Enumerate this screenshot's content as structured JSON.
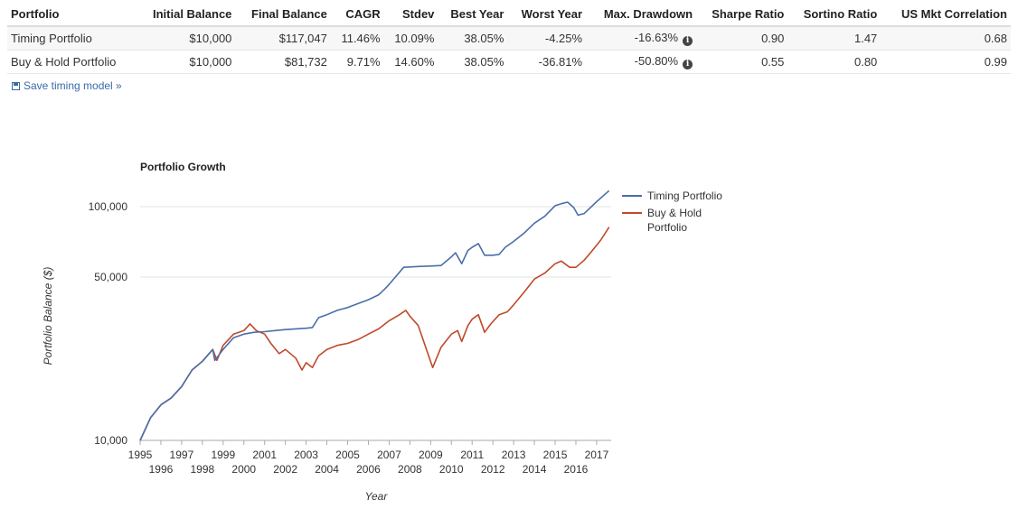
{
  "table": {
    "headers": [
      "Portfolio",
      "Initial Balance",
      "Final Balance",
      "CAGR",
      "Stdev",
      "Best Year",
      "Worst Year",
      "Max. Drawdown",
      "Sharpe Ratio",
      "Sortino Ratio",
      "US Mkt Correlation"
    ],
    "rows": [
      {
        "portfolio": "Timing Portfolio",
        "initial": "$10,000",
        "final": "$117,047",
        "cagr": "11.46%",
        "stdev": "10.09%",
        "best": "38.05%",
        "worst": "-4.25%",
        "drawdown": "-16.63%",
        "sharpe": "0.90",
        "sortino": "1.47",
        "corr": "0.68"
      },
      {
        "portfolio": "Buy & Hold Portfolio",
        "initial": "$10,000",
        "final": "$81,732",
        "cagr": "9.71%",
        "stdev": "14.60%",
        "best": "38.05%",
        "worst": "-36.81%",
        "drawdown": "-50.80%",
        "sharpe": "0.55",
        "sortino": "0.80",
        "corr": "0.99"
      }
    ],
    "info_icon": "i"
  },
  "save_link": "Save timing model »",
  "chart_data": {
    "type": "line",
    "title": "Portfolio Growth",
    "xlabel": "Year",
    "ylabel": "Portfolio Balance ($)",
    "y_scale": "log",
    "ylim": [
      10000,
      125000
    ],
    "xlim": [
      1995,
      2017.7
    ],
    "y_ticks": [
      {
        "v": 10000,
        "label": "10,000"
      },
      {
        "v": 50000,
        "label": "50,000"
      },
      {
        "v": 100000,
        "label": "100,000"
      }
    ],
    "x_ticks": [
      "1995",
      "1996",
      "1997",
      "1998",
      "1999",
      "2000",
      "2001",
      "2002",
      "2003",
      "2004",
      "2005",
      "2006",
      "2007",
      "2008",
      "2009",
      "2010",
      "2011",
      "2012",
      "2013",
      "2014",
      "2015",
      "2016",
      "2017"
    ],
    "legend_position": "right",
    "series": [
      {
        "name": "Timing Portfolio",
        "color": "#4a6ea8",
        "points": [
          [
            1995.0,
            10000
          ],
          [
            1995.5,
            12500
          ],
          [
            1996.0,
            14200
          ],
          [
            1996.5,
            15200
          ],
          [
            1997.0,
            17000
          ],
          [
            1997.5,
            20000
          ],
          [
            1998.0,
            21800
          ],
          [
            1998.5,
            24500
          ],
          [
            1998.6,
            22000
          ],
          [
            1999.0,
            24500
          ],
          [
            1999.5,
            27500
          ],
          [
            2000.0,
            28500
          ],
          [
            2000.5,
            29000
          ],
          [
            2001.0,
            29200
          ],
          [
            2001.5,
            29500
          ],
          [
            2002.0,
            29800
          ],
          [
            2002.5,
            30000
          ],
          [
            2003.0,
            30200
          ],
          [
            2003.3,
            30400
          ],
          [
            2003.6,
            33500
          ],
          [
            2004.0,
            34500
          ],
          [
            2004.5,
            36000
          ],
          [
            2005.0,
            37000
          ],
          [
            2005.5,
            38500
          ],
          [
            2006.0,
            40000
          ],
          [
            2006.5,
            42000
          ],
          [
            2006.8,
            44500
          ],
          [
            2007.0,
            46500
          ],
          [
            2007.3,
            50000
          ],
          [
            2007.7,
            55000
          ],
          [
            2008.0,
            55200
          ],
          [
            2008.5,
            55500
          ],
          [
            2009.0,
            55700
          ],
          [
            2009.5,
            56000
          ],
          [
            2010.0,
            61000
          ],
          [
            2010.2,
            63500
          ],
          [
            2010.5,
            57000
          ],
          [
            2010.8,
            65000
          ],
          [
            2011.0,
            67000
          ],
          [
            2011.3,
            69500
          ],
          [
            2011.6,
            62000
          ],
          [
            2012.0,
            62000
          ],
          [
            2012.3,
            62500
          ],
          [
            2012.6,
            67000
          ],
          [
            2013.0,
            71000
          ],
          [
            2013.5,
            77000
          ],
          [
            2014.0,
            85000
          ],
          [
            2014.5,
            91000
          ],
          [
            2015.0,
            101000
          ],
          [
            2015.3,
            103000
          ],
          [
            2015.6,
            104500
          ],
          [
            2015.9,
            99000
          ],
          [
            2016.1,
            92000
          ],
          [
            2016.4,
            93500
          ],
          [
            2016.7,
            99000
          ],
          [
            2017.0,
            105000
          ],
          [
            2017.3,
            111000
          ],
          [
            2017.6,
            117047
          ]
        ]
      },
      {
        "name": "Buy & Hold Portfolio",
        "color": "#c0492b",
        "points": [
          [
            1995.0,
            10000
          ],
          [
            1995.5,
            12500
          ],
          [
            1996.0,
            14200
          ],
          [
            1996.5,
            15200
          ],
          [
            1997.0,
            17000
          ],
          [
            1997.5,
            20000
          ],
          [
            1998.0,
            21800
          ],
          [
            1998.5,
            24500
          ],
          [
            1998.7,
            22000
          ],
          [
            1999.0,
            25500
          ],
          [
            1999.5,
            28500
          ],
          [
            2000.0,
            29500
          ],
          [
            2000.3,
            31500
          ],
          [
            2000.6,
            29500
          ],
          [
            2001.0,
            28500
          ],
          [
            2001.3,
            26000
          ],
          [
            2001.7,
            23500
          ],
          [
            2002.0,
            24500
          ],
          [
            2002.5,
            22500
          ],
          [
            2002.8,
            20000
          ],
          [
            2003.0,
            21500
          ],
          [
            2003.3,
            20500
          ],
          [
            2003.6,
            23000
          ],
          [
            2004.0,
            24500
          ],
          [
            2004.5,
            25500
          ],
          [
            2005.0,
            26000
          ],
          [
            2005.5,
            27000
          ],
          [
            2006.0,
            28500
          ],
          [
            2006.5,
            30000
          ],
          [
            2007.0,
            32500
          ],
          [
            2007.5,
            34500
          ],
          [
            2007.8,
            36000
          ],
          [
            2008.0,
            34000
          ],
          [
            2008.4,
            31000
          ],
          [
            2008.8,
            24500
          ],
          [
            2009.1,
            20500
          ],
          [
            2009.5,
            25000
          ],
          [
            2010.0,
            28500
          ],
          [
            2010.3,
            29500
          ],
          [
            2010.5,
            26500
          ],
          [
            2010.8,
            31000
          ],
          [
            2011.0,
            33000
          ],
          [
            2011.3,
            34500
          ],
          [
            2011.6,
            29000
          ],
          [
            2011.9,
            31500
          ],
          [
            2012.3,
            34500
          ],
          [
            2012.7,
            35500
          ],
          [
            2013.0,
            38000
          ],
          [
            2013.5,
            43000
          ],
          [
            2014.0,
            49000
          ],
          [
            2014.5,
            52000
          ],
          [
            2015.0,
            57000
          ],
          [
            2015.3,
            58500
          ],
          [
            2015.7,
            55000
          ],
          [
            2016.0,
            55000
          ],
          [
            2016.4,
            59000
          ],
          [
            2016.8,
            65000
          ],
          [
            2017.2,
            72000
          ],
          [
            2017.6,
            81732
          ]
        ]
      }
    ]
  }
}
